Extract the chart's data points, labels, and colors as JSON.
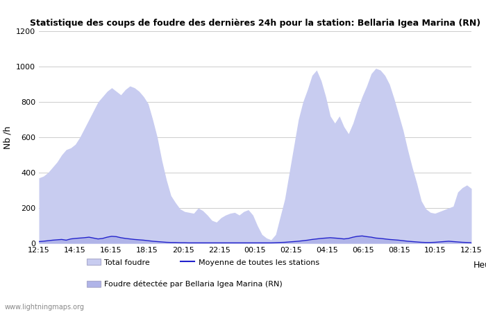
{
  "title": "Statistique des coups de foudre des dernières 24h pour la station: Bellaria Igea Marina (RN)",
  "ylabel": "Nb /h",
  "xlabel": "Heure",
  "ylim": [
    0,
    1200
  ],
  "yticks": [
    0,
    200,
    400,
    600,
    800,
    1000,
    1200
  ],
  "xtick_labels": [
    "12:15",
    "14:15",
    "16:15",
    "18:15",
    "20:15",
    "22:15",
    "00:15",
    "02:15",
    "04:15",
    "06:15",
    "08:15",
    "10:15",
    "12:15"
  ],
  "bg_color": "#ffffff",
  "fill_color_total": "#c8ccf0",
  "fill_color_local": "#b0b4e8",
  "line_color": "#2222cc",
  "watermark": "www.lightningmaps.org",
  "legend_total": "Total foudre",
  "legend_local": "Foudre détectée par Bellaria Igea Marina (RN)",
  "legend_mean": "Moyenne de toutes les stations",
  "total_values": [
    370,
    380,
    400,
    430,
    460,
    500,
    530,
    540,
    560,
    600,
    650,
    700,
    750,
    800,
    830,
    860,
    880,
    860,
    840,
    870,
    890,
    880,
    860,
    830,
    790,
    700,
    600,
    470,
    360,
    270,
    230,
    195,
    180,
    175,
    170,
    200,
    185,
    160,
    130,
    120,
    145,
    160,
    170,
    175,
    160,
    180,
    190,
    160,
    100,
    50,
    30,
    20,
    50,
    150,
    250,
    400,
    550,
    700,
    800,
    870,
    950,
    980,
    920,
    830,
    720,
    680,
    720,
    660,
    620,
    680,
    760,
    830,
    890,
    960,
    990,
    980,
    950,
    900,
    820,
    730,
    640,
    530,
    430,
    340,
    240,
    195,
    175,
    170,
    180,
    190,
    200,
    210,
    290,
    315,
    330,
    310
  ],
  "mean_values": [
    10,
    12,
    15,
    18,
    20,
    22,
    18,
    25,
    28,
    30,
    32,
    35,
    30,
    25,
    28,
    35,
    40,
    38,
    32,
    28,
    25,
    22,
    20,
    18,
    15,
    12,
    10,
    8,
    6,
    5,
    5,
    4,
    4,
    3,
    3,
    3,
    3,
    3,
    3,
    3,
    3,
    3,
    3,
    3,
    3,
    3,
    3,
    3,
    3,
    3,
    3,
    3,
    4,
    5,
    6,
    8,
    10,
    12,
    15,
    18,
    22,
    25,
    28,
    30,
    32,
    30,
    28,
    25,
    28,
    35,
    40,
    42,
    38,
    35,
    30,
    28,
    25,
    22,
    20,
    18,
    15,
    12,
    10,
    8,
    6,
    5,
    5,
    6,
    8,
    10,
    12,
    10,
    8,
    6,
    5,
    4
  ],
  "figsize": [
    7.0,
    4.5
  ],
  "dpi": 100
}
